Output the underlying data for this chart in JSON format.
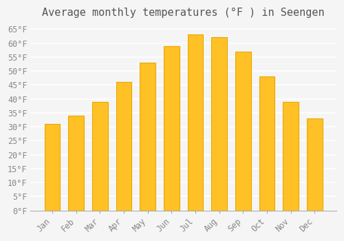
{
  "title": "Average monthly temperatures (°F ) in Seengen",
  "months": [
    "Jan",
    "Feb",
    "Mar",
    "Apr",
    "May",
    "Jun",
    "Jul",
    "Aug",
    "Sep",
    "Oct",
    "Nov",
    "Dec"
  ],
  "values": [
    31,
    34,
    39,
    46,
    53,
    59,
    63,
    62,
    57,
    48,
    39,
    33
  ],
  "bar_color": "#FFC125",
  "bar_edge_color": "#E8A800",
  "ylim": [
    0,
    67
  ],
  "yticks": [
    0,
    5,
    10,
    15,
    20,
    25,
    30,
    35,
    40,
    45,
    50,
    55,
    60,
    65
  ],
  "ytick_labels": [
    "0°F",
    "5°F",
    "10°F",
    "15°F",
    "20°F",
    "25°F",
    "30°F",
    "35°F",
    "40°F",
    "45°F",
    "50°F",
    "55°F",
    "60°F",
    "65°F"
  ],
  "background_color": "#F5F5F5",
  "grid_color": "#FFFFFF",
  "title_fontsize": 11,
  "tick_fontsize": 8.5,
  "font_family": "monospace"
}
